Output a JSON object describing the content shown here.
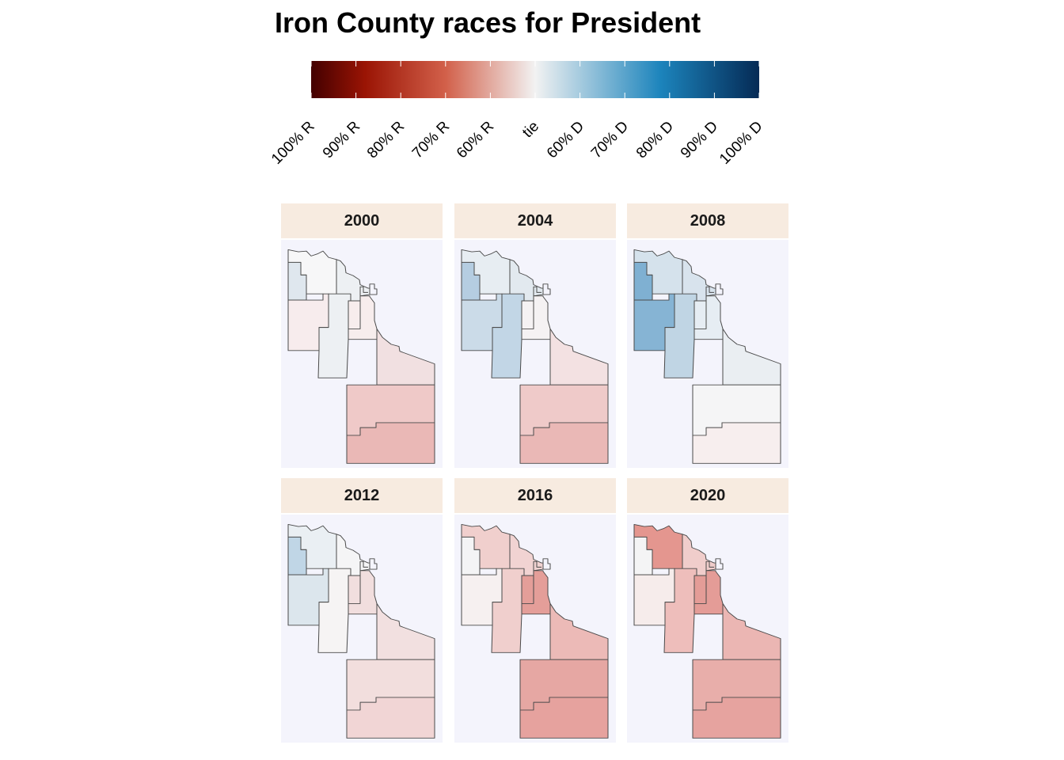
{
  "title": "Iron County races for President",
  "legend": {
    "labels": [
      "100% R",
      "90% R",
      "80% R",
      "70% R",
      "60% R",
      "tie",
      "60% D",
      "70% D",
      "80% D",
      "90% D",
      "100% D"
    ],
    "colors": [
      "#430000",
      "#9a1404",
      "#d2604a",
      "#f2f2f2",
      "#1c84bc",
      "#052a55"
    ]
  },
  "panels": [
    {
      "year": "2000",
      "regions": {
        "a": "#dfe7ee",
        "b": "#f7f7f8",
        "c": "#edf0f3",
        "d": "#f7eced",
        "e": "#edf0f3",
        "f": "#f7eded",
        "g": "#f1e0e1",
        "h": "#efc9c8",
        "i": "#eab8b6"
      }
    },
    {
      "year": "2004",
      "regions": {
        "a": "#b5cde1",
        "b": "#e7edf2",
        "c": "#e2e9ef",
        "d": "#cbdbe8",
        "e": "#c2d6e6",
        "f": "#f5f2f3",
        "g": "#f3e1e2",
        "h": "#efcac9",
        "i": "#eab8b6"
      }
    },
    {
      "year": "2008",
      "regions": {
        "a": "#7fb0d2",
        "b": "#d5e2ec",
        "c": "#d8e3ed",
        "d": "#86b4d4",
        "e": "#c0d5e4",
        "f": "#e6edf3",
        "g": "#eaeef2",
        "h": "#f5f5f6",
        "i": "#f7eeee"
      }
    },
    {
      "year": "2012",
      "regions": {
        "a": "#c0d6e6",
        "b": "#eaeff3",
        "c": "#f5f5f6",
        "d": "#dce6ed",
        "e": "#f6f4f4",
        "f": "#f1dede",
        "g": "#f2e0e0",
        "h": "#f2dedd",
        "i": "#f1d5d5"
      }
    },
    {
      "year": "2016",
      "regions": {
        "a": "#f4f4f5",
        "b": "#f0cfcd",
        "c": "#f1d3d2",
        "d": "#f6f0f0",
        "e": "#f0cfcd",
        "f": "#e49e99",
        "g": "#ecbab7",
        "h": "#e6a7a3",
        "i": "#e6a29e"
      }
    },
    {
      "year": "2020",
      "regions": {
        "a": "#f4f4f5",
        "b": "#e4968f",
        "c": "#f0cdcb",
        "d": "#f6eceb",
        "e": "#eebebb",
        "f": "#e49c97",
        "g": "#ebb6b3",
        "h": "#e8aeaa",
        "i": "#e6a39f"
      }
    }
  ]
}
